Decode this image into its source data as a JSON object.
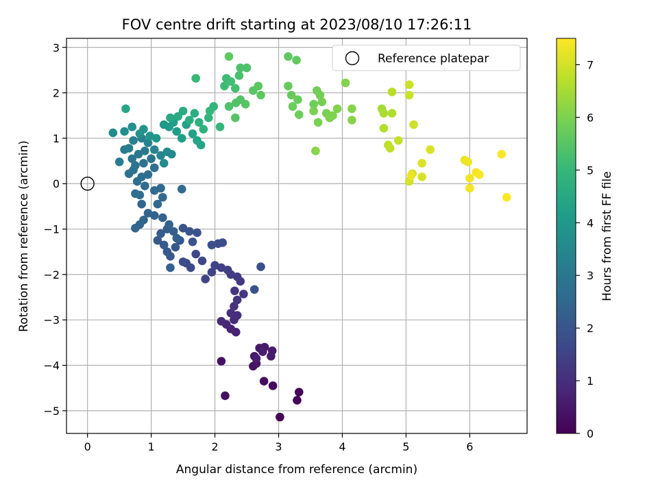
{
  "chart_data": {
    "type": "scatter",
    "title": "FOV centre drift starting at 2023/08/10 17:26:11",
    "xlabel": "Angular distance from reference (arcmin)",
    "ylabel": "Rotation from reference (arcmin)",
    "xlim": [
      -0.33,
      6.9
    ],
    "ylim": [
      -5.5,
      3.2
    ],
    "xticks": [
      0,
      1,
      2,
      3,
      4,
      5,
      6
    ],
    "yticks": [
      -5,
      -4,
      -3,
      -2,
      -1,
      0,
      1,
      2,
      3
    ],
    "grid": true,
    "legend": {
      "position": "top-right",
      "entries": [
        "Reference platepar"
      ]
    },
    "reference_point": {
      "x": 0,
      "y": 0
    },
    "colorbar": {
      "label": "Hours from first FF file",
      "range": [
        0,
        7.5
      ],
      "ticks": [
        0,
        1,
        2,
        3,
        4,
        5,
        6,
        7
      ],
      "colormap": "viridis"
    },
    "colormap_stops": [
      "#440154",
      "#482878",
      "#3e4989",
      "#31688e",
      "#26828e",
      "#1f9e89",
      "#35b779",
      "#6ece58",
      "#b5de2b",
      "#fde725"
    ],
    "points": [
      [
        3.02,
        -5.14,
        0.05
      ],
      [
        3.29,
        -4.77,
        0.1
      ],
      [
        3.32,
        -4.59,
        0.12
      ],
      [
        2.91,
        -4.45,
        0.2
      ],
      [
        2.77,
        -4.35,
        0.25
      ],
      [
        2.16,
        -4.67,
        0.3
      ],
      [
        2.1,
        -3.91,
        0.35
      ],
      [
        2.6,
        -4.02,
        0.4
      ],
      [
        2.65,
        -3.96,
        0.42
      ],
      [
        2.62,
        -3.8,
        0.45
      ],
      [
        2.7,
        -3.62,
        0.5
      ],
      [
        2.78,
        -3.6,
        0.52
      ],
      [
        2.9,
        -3.68,
        0.55
      ],
      [
        2.88,
        -3.8,
        0.58
      ],
      [
        2.75,
        -3.7,
        0.6
      ],
      [
        2.65,
        -3.85,
        0.62
      ],
      [
        2.33,
        -3.27,
        0.7
      ],
      [
        2.25,
        -3.2,
        0.75
      ],
      [
        2.18,
        -3.1,
        0.8
      ],
      [
        2.1,
        -3.03,
        0.85
      ],
      [
        2.3,
        -3.0,
        0.9
      ],
      [
        2.35,
        -2.9,
        0.95
      ],
      [
        2.25,
        -2.85,
        1.0
      ],
      [
        2.3,
        -2.7,
        1.05
      ],
      [
        2.35,
        -2.56,
        1.1
      ],
      [
        2.31,
        -2.36,
        1.15
      ],
      [
        2.45,
        -2.43,
        1.2
      ],
      [
        2.4,
        -2.15,
        1.25
      ],
      [
        2.35,
        -2.05,
        1.3
      ],
      [
        2.25,
        -2.0,
        1.35
      ],
      [
        2.2,
        -1.9,
        1.4
      ],
      [
        2.1,
        -1.85,
        1.45
      ],
      [
        2.0,
        -1.8,
        1.5
      ],
      [
        1.95,
        -1.95,
        1.55
      ],
      [
        1.85,
        -2.1,
        1.6
      ],
      [
        1.8,
        -1.7,
        1.62
      ],
      [
        1.7,
        -1.55,
        1.65
      ],
      [
        1.55,
        -1.75,
        1.7
      ],
      [
        1.62,
        -1.85,
        1.72
      ],
      [
        1.5,
        -1.72,
        1.75
      ],
      [
        2.05,
        -1.32,
        1.78
      ],
      [
        2.12,
        -1.3,
        1.8
      ],
      [
        1.95,
        -1.35,
        1.82
      ],
      [
        2.72,
        -1.83,
        1.85
      ],
      [
        2.62,
        -2.33,
        1.9
      ],
      [
        1.65,
        -1.28,
        1.92
      ],
      [
        1.72,
        -1.08,
        1.95
      ],
      [
        1.6,
        -1.05,
        1.98
      ],
      [
        1.5,
        -0.98,
        2.0
      ],
      [
        1.45,
        -1.25,
        2.02
      ],
      [
        1.38,
        -1.4,
        2.05
      ],
      [
        1.3,
        -1.6,
        2.08
      ],
      [
        1.25,
        -1.5,
        2.1
      ],
      [
        1.2,
        -1.35,
        2.12
      ],
      [
        1.1,
        -1.25,
        2.15
      ],
      [
        1.15,
        -1.1,
        2.18
      ],
      [
        1.25,
        -1.0,
        2.2
      ],
      [
        1.35,
        -1.05,
        2.22
      ],
      [
        1.4,
        -1.2,
        2.25
      ],
      [
        1.3,
        -1.85,
        2.28
      ],
      [
        1.28,
        -0.9,
        2.3
      ],
      [
        1.18,
        -0.75,
        2.32
      ],
      [
        1.05,
        -0.7,
        2.35
      ],
      [
        0.95,
        -0.65,
        2.38
      ],
      [
        0.88,
        -0.8,
        2.4
      ],
      [
        0.82,
        -0.9,
        2.42
      ],
      [
        0.75,
        -0.98,
        2.45
      ],
      [
        0.85,
        -0.45,
        2.48
      ],
      [
        1.1,
        -0.45,
        2.5
      ],
      [
        1.18,
        -0.3,
        2.52
      ],
      [
        1.05,
        -0.15,
        2.55
      ],
      [
        1.15,
        -0.1,
        2.58
      ],
      [
        1.48,
        -0.12,
        2.6
      ],
      [
        0.9,
        -0.05,
        2.62
      ],
      [
        0.82,
        -0.25,
        2.65
      ],
      [
        0.75,
        -0.22,
        2.68
      ],
      [
        0.78,
        0.05,
        2.7
      ],
      [
        0.85,
        0.15,
        2.72
      ],
      [
        0.95,
        0.2,
        2.75
      ],
      [
        1.05,
        0.35,
        2.78
      ],
      [
        0.72,
        0.3,
        2.8
      ],
      [
        0.65,
        0.22,
        2.82
      ],
      [
        0.75,
        0.4,
        2.85
      ],
      [
        0.88,
        0.45,
        2.88
      ],
      [
        1.0,
        0.55,
        2.9
      ],
      [
        0.7,
        0.55,
        2.95
      ],
      [
        0.8,
        0.65,
        3.0
      ],
      [
        0.9,
        0.72,
        3.05
      ],
      [
        0.58,
        0.75,
        3.1
      ],
      [
        0.5,
        0.48,
        3.15
      ],
      [
        0.65,
        0.78,
        3.2
      ],
      [
        0.72,
        0.95,
        3.25
      ],
      [
        0.85,
        1.0,
        3.3
      ],
      [
        0.95,
        0.9,
        3.35
      ],
      [
        1.05,
        0.75,
        3.4
      ],
      [
        1.15,
        0.62,
        3.45
      ],
      [
        1.25,
        0.7,
        3.5
      ],
      [
        1.32,
        0.65,
        3.55
      ],
      [
        1.2,
        0.45,
        3.6
      ],
      [
        0.4,
        1.12,
        3.65
      ],
      [
        0.58,
        1.15,
        3.7
      ],
      [
        0.7,
        1.25,
        3.75
      ],
      [
        0.82,
        1.1,
        3.8
      ],
      [
        0.88,
        1.2,
        3.85
      ],
      [
        0.98,
        1.05,
        3.9
      ],
      [
        1.08,
        1.0,
        3.95
      ],
      [
        1.2,
        1.3,
        4.0
      ],
      [
        1.28,
        1.25,
        4.05
      ],
      [
        1.35,
        1.35,
        4.1
      ],
      [
        1.4,
        1.15,
        4.15
      ],
      [
        1.48,
        1.0,
        4.2
      ],
      [
        1.55,
        1.3,
        4.25
      ],
      [
        1.65,
        1.1,
        4.3
      ],
      [
        1.72,
        0.95,
        4.35
      ],
      [
        1.78,
        0.85,
        4.4
      ],
      [
        0.6,
        1.65,
        4.45
      ],
      [
        1.3,
        1.45,
        4.5
      ],
      [
        1.42,
        1.48,
        4.55
      ],
      [
        1.5,
        1.6,
        4.6
      ],
      [
        1.6,
        1.4,
        4.65
      ],
      [
        1.68,
        1.55,
        4.7
      ],
      [
        1.75,
        1.35,
        4.75
      ],
      [
        1.82,
        1.2,
        4.8
      ],
      [
        1.9,
        1.45,
        4.85
      ],
      [
        1.98,
        1.7,
        4.9
      ],
      [
        2.08,
        1.25,
        4.95
      ],
      [
        1.92,
        1.6,
        5.0
      ],
      [
        1.7,
        2.32,
        5.05
      ],
      [
        2.15,
        2.15,
        5.1
      ],
      [
        2.18,
        2.32,
        5.15
      ],
      [
        2.25,
        2.25,
        5.2
      ],
      [
        2.32,
        2.1,
        5.25
      ],
      [
        2.38,
        2.38,
        5.3
      ],
      [
        2.4,
        2.55,
        5.35
      ],
      [
        2.5,
        2.55,
        5.38
      ],
      [
        2.22,
        1.7,
        5.4
      ],
      [
        2.33,
        1.78,
        5.42
      ],
      [
        2.4,
        1.85,
        5.45
      ],
      [
        2.32,
        1.45,
        5.48
      ],
      [
        2.48,
        1.75,
        5.5
      ],
      [
        2.6,
        2.05,
        5.52
      ],
      [
        2.68,
        2.15,
        5.55
      ],
      [
        2.72,
        1.95,
        5.58
      ],
      [
        2.22,
        2.8,
        5.6
      ],
      [
        3.15,
        2.8,
        5.62
      ],
      [
        3.28,
        2.72,
        5.65
      ],
      [
        3.15,
        2.15,
        5.7
      ],
      [
        3.2,
        1.95,
        5.72
      ],
      [
        3.3,
        1.85,
        5.75
      ],
      [
        3.22,
        1.7,
        5.78
      ],
      [
        3.32,
        1.52,
        5.8
      ],
      [
        3.55,
        1.75,
        5.82
      ],
      [
        3.6,
        2.05,
        5.85
      ],
      [
        3.65,
        1.95,
        5.88
      ],
      [
        3.68,
        1.8,
        5.9
      ],
      [
        3.75,
        1.55,
        5.92
      ],
      [
        3.62,
        1.35,
        5.95
      ],
      [
        3.55,
        1.6,
        5.98
      ],
      [
        3.8,
        1.45,
        6.0
      ],
      [
        3.85,
        1.5,
        6.02
      ],
      [
        3.92,
        1.65,
        6.05
      ],
      [
        4.05,
        2.22,
        6.08
      ],
      [
        4.15,
        1.65,
        6.1
      ],
      [
        4.15,
        1.4,
        6.12
      ],
      [
        3.58,
        0.72,
        6.15
      ],
      [
        4.62,
        1.65,
        6.5
      ],
      [
        4.65,
        1.55,
        6.55
      ],
      [
        4.78,
        1.55,
        6.6
      ],
      [
        4.65,
        1.22,
        6.65
      ],
      [
        4.78,
        2.02,
        6.7
      ],
      [
        4.72,
        0.85,
        6.75
      ],
      [
        4.75,
        0.78,
        6.8
      ],
      [
        4.88,
        0.95,
        6.85
      ],
      [
        5.05,
        1.95,
        6.9
      ],
      [
        5.05,
        2.18,
        6.92
      ],
      [
        5.12,
        1.3,
        6.95
      ],
      [
        5.1,
        0.22,
        7.0
      ],
      [
        5.05,
        0.05,
        7.02
      ],
      [
        5.25,
        0.15,
        7.05
      ],
      [
        5.25,
        0.45,
        7.08
      ],
      [
        5.38,
        0.75,
        7.1
      ],
      [
        5.08,
        0.18,
        7.3
      ],
      [
        5.92,
        0.52,
        7.3
      ],
      [
        5.97,
        0.48,
        7.32
      ],
      [
        6.0,
        0.12,
        7.35
      ],
      [
        6.0,
        -0.1,
        7.38
      ],
      [
        6.1,
        0.25,
        7.4
      ],
      [
        6.15,
        0.2,
        7.42
      ],
      [
        6.5,
        0.65,
        7.45
      ],
      [
        6.58,
        -0.3,
        7.48
      ]
    ]
  }
}
